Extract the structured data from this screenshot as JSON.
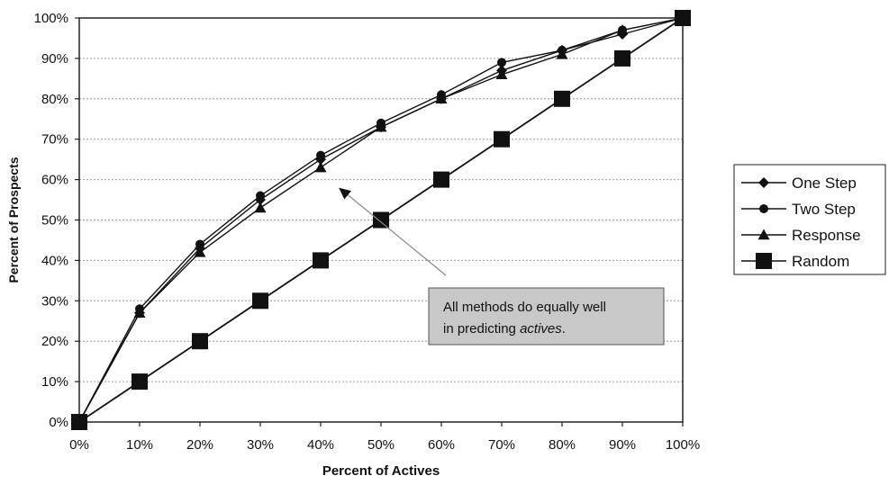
{
  "chart_data": {
    "type": "line",
    "title": "",
    "xlabel": "Percent of Actives",
    "ylabel": "Percent of Prospects",
    "x": [
      0,
      10,
      20,
      30,
      40,
      50,
      60,
      70,
      80,
      90,
      100
    ],
    "xlim": [
      0,
      100
    ],
    "ylim": [
      0,
      100
    ],
    "x_tick_labels": [
      "0%",
      "10%",
      "20%",
      "30%",
      "40%",
      "50%",
      "60%",
      "70%",
      "80%",
      "90%",
      "100%"
    ],
    "y_tick_labels": [
      "0%",
      "10%",
      "20%",
      "30%",
      "40%",
      "50%",
      "60%",
      "70%",
      "80%",
      "90%",
      "100%"
    ],
    "grid": "horizontal dotted",
    "legend_position": "right",
    "series": [
      {
        "name": "One Step",
        "marker": "diamond",
        "values": [
          0,
          27,
          43,
          55,
          65,
          73,
          80,
          87,
          92,
          96,
          100
        ]
      },
      {
        "name": "Two Step",
        "marker": "circle",
        "values": [
          0,
          28,
          44,
          56,
          66,
          74,
          81,
          89,
          92,
          97,
          100
        ]
      },
      {
        "name": "Response",
        "marker": "triangle",
        "values": [
          0,
          27,
          42,
          53,
          63,
          73,
          80,
          86,
          91,
          97,
          100
        ]
      },
      {
        "name": "Random",
        "marker": "square",
        "values": [
          0,
          10,
          20,
          30,
          40,
          50,
          60,
          70,
          80,
          90,
          100
        ]
      }
    ],
    "annotation": {
      "text_line1": "All methods do equally well",
      "text_line2_prefix": "in predicting ",
      "text_line2_italic": "actives",
      "text_line2_suffix": ".",
      "points_to_x": 43,
      "points_to_y": 58
    },
    "colors": {
      "line": "#111111",
      "grid": "#9a9a9a",
      "annotation_fill": "#c8c8c8",
      "annotation_arrow": "#8a8a8a"
    }
  }
}
